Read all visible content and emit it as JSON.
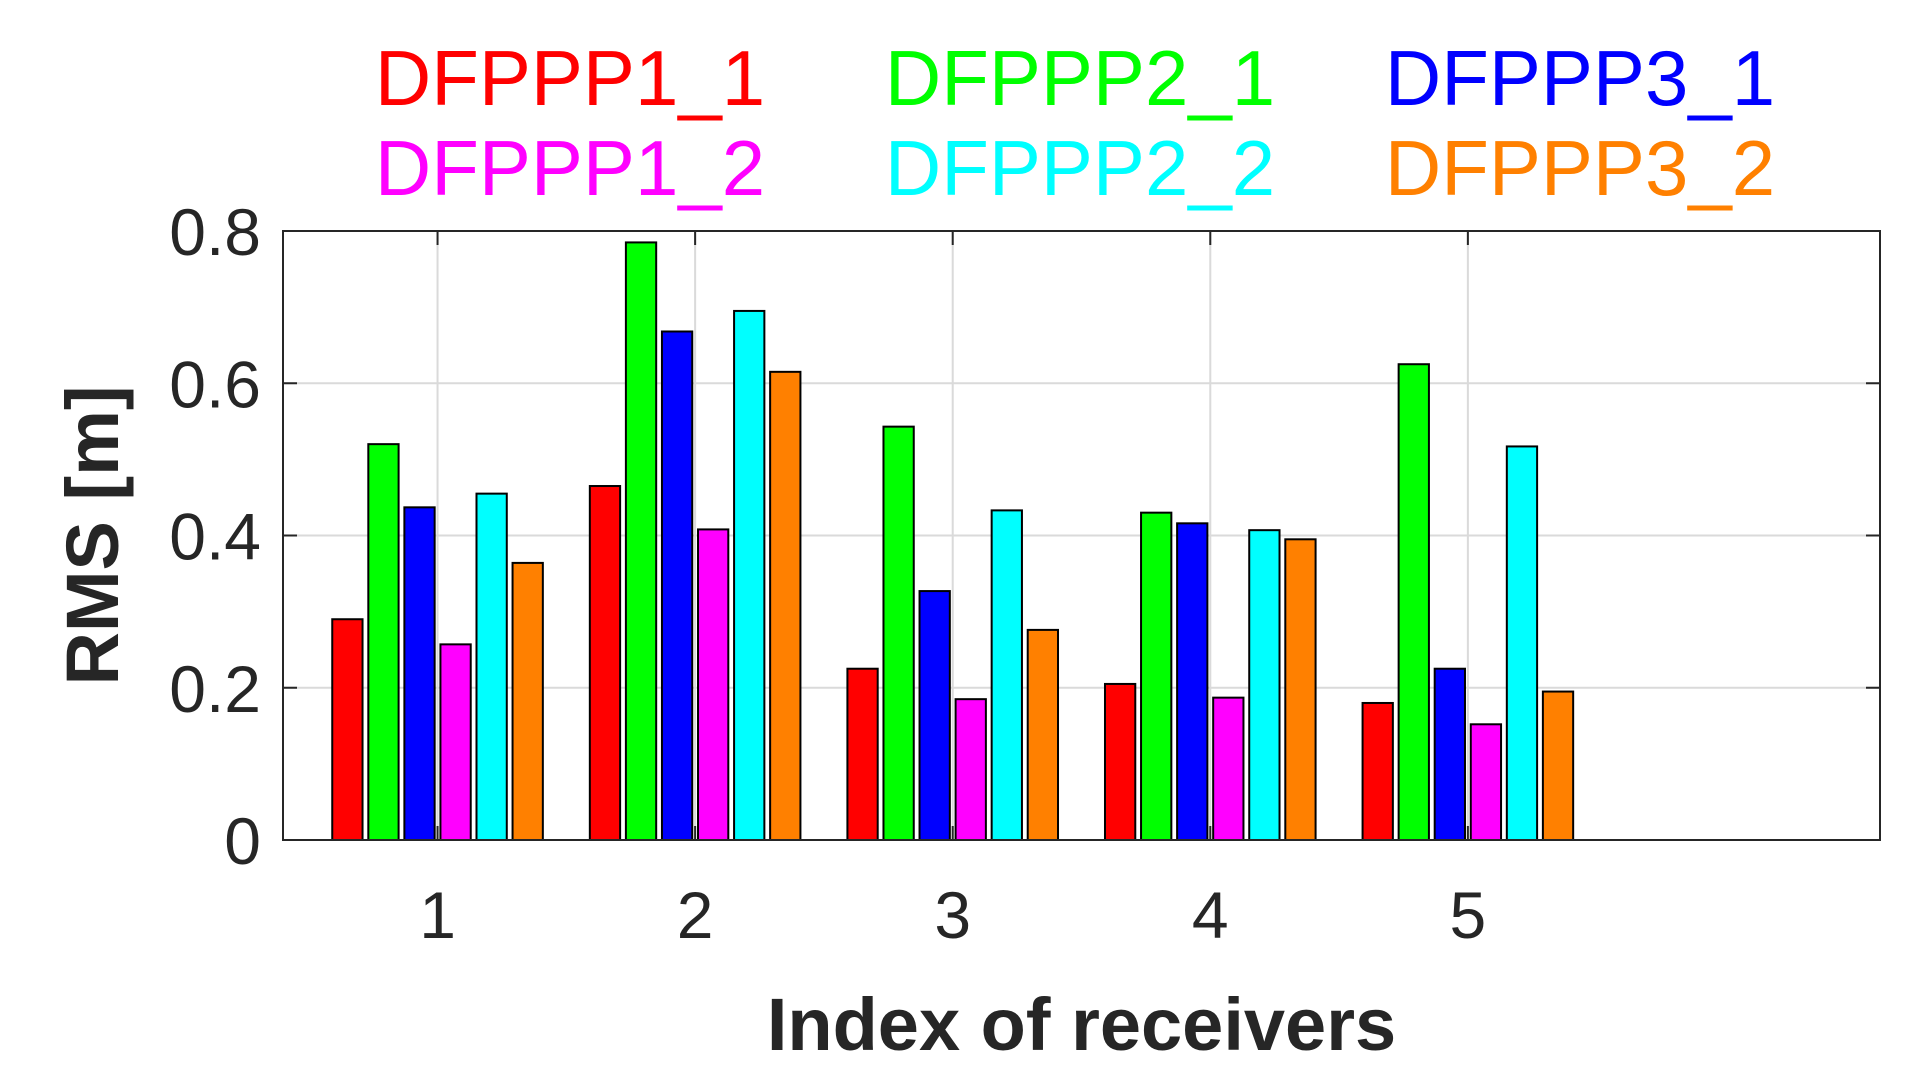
{
  "chart_data": {
    "type": "bar",
    "title": "",
    "xlabel": "Index of receivers",
    "ylabel": "RMS [m]",
    "categories": [
      "1",
      "2",
      "3",
      "4",
      "5"
    ],
    "ylim": [
      0,
      0.8
    ],
    "yticks": [
      0,
      0.2,
      0.4,
      0.6,
      0.8
    ],
    "ytick_labels": [
      "0",
      "0.2",
      "0.4",
      "0.6",
      "0.8"
    ],
    "grid": true,
    "legend_position": "top",
    "series": [
      {
        "name": "DFPPP1_1",
        "color": "#ff0000",
        "values": [
          0.29,
          0.465,
          0.225,
          0.205,
          0.18
        ]
      },
      {
        "name": "DFPPP2_1",
        "color": "#00ff00",
        "values": [
          0.52,
          0.785,
          0.543,
          0.43,
          0.625
        ]
      },
      {
        "name": "DFPPP3_1",
        "color": "#0000ff",
        "values": [
          0.437,
          0.668,
          0.327,
          0.416,
          0.225
        ]
      },
      {
        "name": "DFPPP1_2",
        "color": "#ff00ff",
        "values": [
          0.257,
          0.408,
          0.185,
          0.187,
          0.152
        ]
      },
      {
        "name": "DFPPP2_2",
        "color": "#00ffff",
        "values": [
          0.455,
          0.695,
          0.433,
          0.407,
          0.517
        ]
      },
      {
        "name": "DFPPP3_2",
        "color": "#ff8000",
        "values": [
          0.364,
          0.615,
          0.276,
          0.395,
          0.195
        ]
      }
    ]
  }
}
